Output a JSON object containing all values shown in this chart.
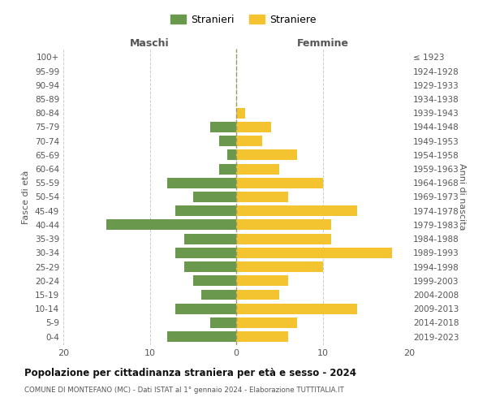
{
  "age_groups": [
    "0-4",
    "5-9",
    "10-14",
    "15-19",
    "20-24",
    "25-29",
    "30-34",
    "35-39",
    "40-44",
    "45-49",
    "50-54",
    "55-59",
    "60-64",
    "65-69",
    "70-74",
    "75-79",
    "80-84",
    "85-89",
    "90-94",
    "95-99",
    "100+"
  ],
  "birth_years": [
    "2019-2023",
    "2014-2018",
    "2009-2013",
    "2004-2008",
    "1999-2003",
    "1994-1998",
    "1989-1993",
    "1984-1988",
    "1979-1983",
    "1974-1978",
    "1969-1973",
    "1964-1968",
    "1959-1963",
    "1954-1958",
    "1949-1953",
    "1944-1948",
    "1939-1943",
    "1934-1938",
    "1929-1933",
    "1924-1928",
    "≤ 1923"
  ],
  "maschi": [
    8,
    3,
    7,
    4,
    5,
    6,
    7,
    6,
    15,
    7,
    5,
    8,
    2,
    1,
    2,
    3,
    0,
    0,
    0,
    0,
    0
  ],
  "femmine": [
    6,
    7,
    14,
    5,
    6,
    10,
    18,
    11,
    11,
    14,
    6,
    10,
    5,
    7,
    3,
    4,
    1,
    0,
    0,
    0,
    0
  ],
  "maschi_color": "#6a994e",
  "femmine_color": "#f4c430",
  "grid_color": "#cccccc",
  "zero_line_color": "#999966",
  "title": "Popolazione per cittadinanza straniera per età e sesso - 2024",
  "subtitle": "COMUNE DI MONTEFANO (MC) - Dati ISTAT al 1° gennaio 2024 - Elaborazione TUTTITALIA.IT",
  "label_maschi": "Maschi",
  "label_femmine": "Femmine",
  "ylabel_left": "Fasce di età",
  "ylabel_right": "Anni di nascita",
  "legend_maschi": "Stranieri",
  "legend_femmine": "Straniere",
  "xlim": 20,
  "bar_height": 0.75
}
